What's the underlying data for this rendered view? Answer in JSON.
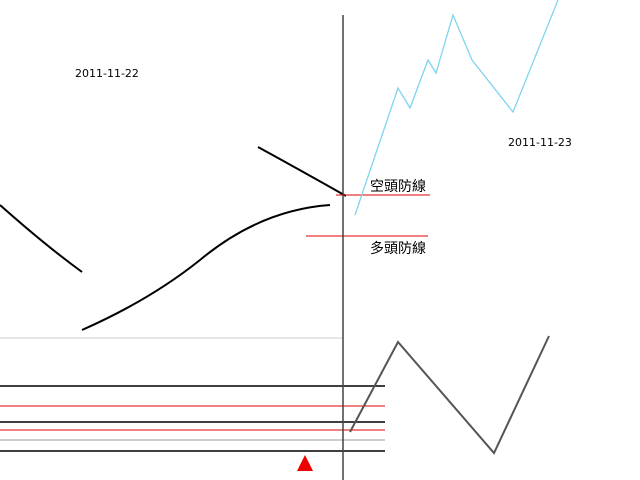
{
  "labels": {
    "date_left": "2011-11-22",
    "date_right": "2011-11-23",
    "bear_line": "空頭防線",
    "bull_line": "多頭防線"
  }
}
